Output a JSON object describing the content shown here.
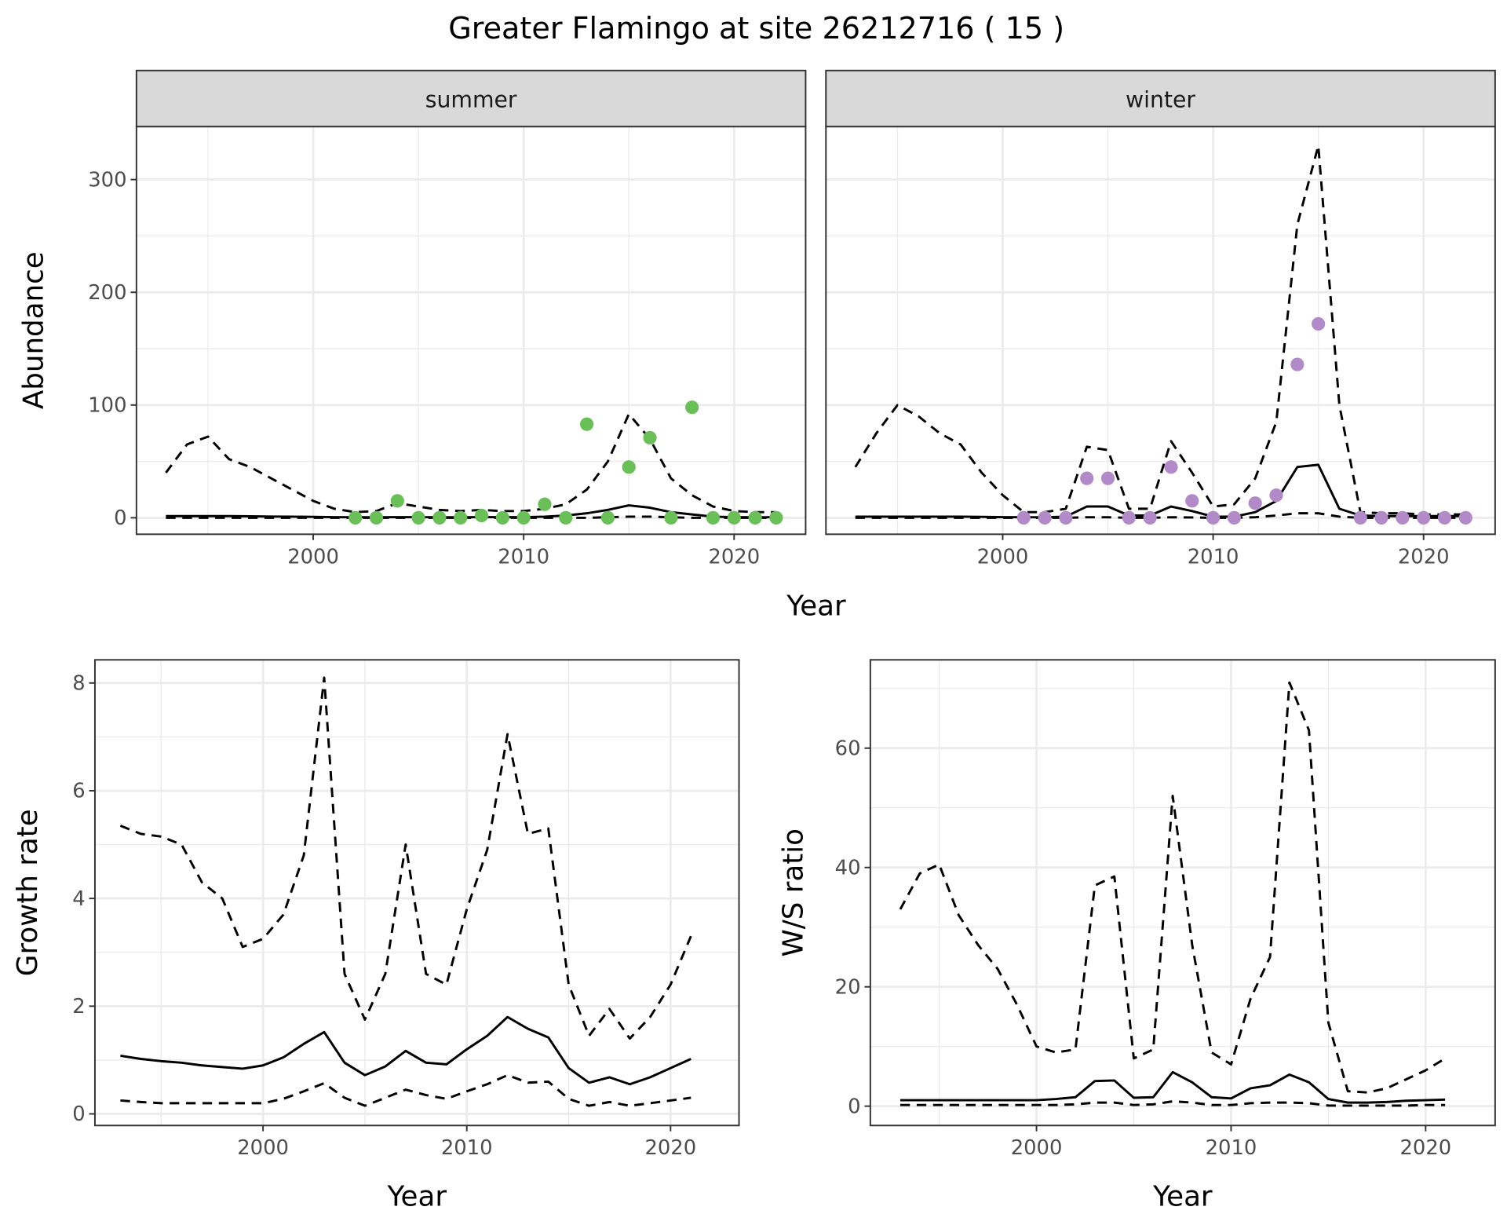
{
  "title": "Greater Flamingo at site 26212716 ( 15 )",
  "colors": {
    "summer_points": "#6abf59",
    "winter_points": "#b38ac8",
    "lines": "#000000",
    "strip_bg": "#d9d9d9",
    "grid": "#ebebeb"
  },
  "chart_data": [
    {
      "type": "line",
      "facet": "summer",
      "xlabel": "Year",
      "ylabel": "Abundance",
      "xlim": [
        1991.6,
        2023.4
      ],
      "ylim": [
        -14.6,
        347
      ],
      "xticks": [
        2000,
        2010,
        2020
      ],
      "yticks": [
        0,
        100,
        200,
        300
      ],
      "grid": true,
      "x": [
        1993,
        1994,
        1995,
        1996,
        1997,
        1998,
        1999,
        2000,
        2001,
        2002,
        2003,
        2004,
        2005,
        2006,
        2007,
        2008,
        2009,
        2010,
        2011,
        2012,
        2013,
        2014,
        2015,
        2016,
        2017,
        2018,
        2019,
        2020,
        2021,
        2022
      ],
      "series": [
        {
          "style": "dashed",
          "values": [
            40,
            65,
            72,
            52,
            45,
            35,
            25,
            15,
            8,
            5,
            6,
            13,
            10,
            7,
            6,
            7,
            6,
            6,
            8,
            12,
            25,
            50,
            92,
            70,
            35,
            20,
            10,
            6,
            5,
            5
          ]
        },
        {
          "style": "solid",
          "values": [
            1.5,
            1.5,
            1.5,
            1.5,
            1.3,
            1.1,
            1,
            0.8,
            0.6,
            0.5,
            0.5,
            0.6,
            0.6,
            0.5,
            0.5,
            0.6,
            0.6,
            0.6,
            1,
            2,
            4,
            7,
            11,
            9,
            5,
            3,
            1,
            0.6,
            0.5,
            0.5
          ]
        },
        {
          "style": "dashed",
          "values": [
            0,
            0,
            0,
            0,
            0,
            0,
            0,
            0,
            0,
            0,
            0,
            0,
            0,
            0,
            0,
            0,
            0,
            0,
            0,
            0,
            0,
            0.5,
            1,
            1,
            0.5,
            0,
            0,
            0,
            0,
            0
          ]
        }
      ],
      "points": {
        "x": [
          2002,
          2003,
          2004,
          2005,
          2006,
          2007,
          2008,
          2009,
          2010,
          2011,
          2012,
          2013,
          2014,
          2015,
          2016,
          2017,
          2018,
          2019,
          2020,
          2021,
          2022
        ],
        "y": [
          0,
          0,
          15,
          0,
          0,
          0,
          2,
          0,
          0,
          12,
          0,
          83,
          0,
          45,
          71,
          0,
          98,
          0,
          0,
          0,
          0
        ]
      }
    },
    {
      "type": "line",
      "facet": "winter",
      "xlabel": "Year",
      "ylabel": "Abundance",
      "xlim": [
        1991.6,
        2023.4
      ],
      "ylim": [
        -14.6,
        347
      ],
      "xticks": [
        2000,
        2010,
        2020
      ],
      "yticks": [
        0,
        100,
        200,
        300
      ],
      "grid": true,
      "x": [
        1993,
        1994,
        1995,
        1996,
        1997,
        1998,
        1999,
        2000,
        2001,
        2002,
        2003,
        2004,
        2005,
        2006,
        2007,
        2008,
        2009,
        2010,
        2011,
        2012,
        2013,
        2014,
        2015,
        2016,
        2017,
        2018,
        2019,
        2020,
        2021,
        2022
      ],
      "series": [
        {
          "style": "dashed",
          "values": [
            45,
            75,
            100,
            90,
            75,
            65,
            40,
            20,
            5,
            5,
            8,
            63,
            60,
            8,
            8,
            68,
            40,
            10,
            12,
            35,
            85,
            260,
            330,
            100,
            5,
            4,
            4,
            3,
            3,
            3
          ]
        },
        {
          "style": "solid",
          "values": [
            1,
            1,
            1,
            1,
            1,
            1,
            0.8,
            0.6,
            0.5,
            0.5,
            1,
            10,
            10,
            2,
            2,
            10,
            6,
            1,
            1,
            5,
            15,
            45,
            47,
            8,
            2,
            1.5,
            1.5,
            1.5,
            1.5,
            1.5
          ]
        },
        {
          "style": "dashed",
          "values": [
            0,
            0,
            0,
            0,
            0,
            0,
            0,
            0,
            0,
            0,
            0,
            0.5,
            0.5,
            0,
            0,
            0.5,
            0.3,
            0,
            0,
            0.5,
            2,
            4,
            4,
            1,
            0,
            0,
            0,
            0,
            0,
            0
          ]
        }
      ],
      "points": {
        "x": [
          2001,
          2002,
          2003,
          2004,
          2005,
          2006,
          2007,
          2008,
          2009,
          2010,
          2011,
          2012,
          2013,
          2014,
          2015,
          2017,
          2018,
          2019,
          2020,
          2021,
          2022
        ],
        "y": [
          0,
          0,
          0,
          35,
          35,
          0,
          0,
          45,
          15,
          0,
          0,
          13,
          20,
          136,
          172,
          0,
          0,
          0,
          0,
          0,
          0
        ]
      }
    },
    {
      "type": "line",
      "xlabel": "Year",
      "ylabel": "Growth rate",
      "xlim": [
        1991.75,
        2023.36
      ],
      "ylim": [
        -0.215,
        8.43
      ],
      "xticks": [
        2000,
        2010,
        2020
      ],
      "yticks": [
        0,
        2,
        4,
        6,
        8
      ],
      "grid": true,
      "x": [
        1993,
        1994,
        1995,
        1996,
        1997,
        1998,
        1999,
        2000,
        2001,
        2002,
        2003,
        2004,
        2005,
        2006,
        2007,
        2008,
        2009,
        2010,
        2011,
        2012,
        2013,
        2014,
        2015,
        2016,
        2017,
        2018,
        2019,
        2020,
        2021
      ],
      "series": [
        {
          "style": "dashed",
          "values": [
            5.35,
            5.2,
            5.15,
            5.0,
            4.3,
            4.0,
            3.1,
            3.25,
            3.7,
            4.8,
            8.1,
            2.6,
            1.75,
            2.6,
            5.0,
            2.6,
            2.4,
            3.8,
            4.9,
            7.05,
            5.2,
            5.3,
            2.4,
            1.45,
            1.95,
            1.4,
            1.8,
            2.4,
            3.3
          ]
        },
        {
          "style": "solid",
          "values": [
            1.08,
            1.02,
            0.98,
            0.95,
            0.9,
            0.87,
            0.84,
            0.9,
            1.05,
            1.3,
            1.52,
            0.95,
            0.72,
            0.88,
            1.17,
            0.95,
            0.92,
            1.2,
            1.45,
            1.8,
            1.58,
            1.42,
            0.85,
            0.58,
            0.68,
            0.55,
            0.68,
            0.85,
            1.02
          ]
        },
        {
          "style": "dashed",
          "values": [
            0.25,
            0.22,
            0.2,
            0.2,
            0.2,
            0.2,
            0.2,
            0.2,
            0.28,
            0.42,
            0.57,
            0.3,
            0.15,
            0.3,
            0.45,
            0.35,
            0.28,
            0.42,
            0.55,
            0.72,
            0.58,
            0.6,
            0.28,
            0.15,
            0.22,
            0.15,
            0.2,
            0.25,
            0.3
          ]
        }
      ]
    },
    {
      "type": "line",
      "xlabel": "Year",
      "ylabel": "W/S ratio",
      "xlim": [
        1991.46,
        2023.57
      ],
      "ylim": [
        -3.24,
        74.8
      ],
      "xticks": [
        2000,
        2010,
        2020
      ],
      "yticks": [
        0,
        20,
        40,
        60
      ],
      "grid": true,
      "x": [
        1993,
        1994,
        1995,
        1996,
        1997,
        1998,
        1999,
        2000,
        2001,
        2002,
        2003,
        2004,
        2005,
        2006,
        2007,
        2008,
        2009,
        2010,
        2011,
        2012,
        2013,
        2014,
        2015,
        2016,
        2017,
        2018,
        2019,
        2020,
        2021
      ],
      "series": [
        {
          "style": "dashed",
          "values": [
            33,
            39,
            40.5,
            32,
            27,
            23,
            17,
            10,
            9,
            9.5,
            37,
            38.5,
            8,
            9.5,
            52,
            27,
            9,
            7,
            18,
            25,
            71,
            63,
            14,
            2.5,
            2.3,
            3,
            4.5,
            6,
            8
          ]
        },
        {
          "style": "solid",
          "values": [
            1,
            1,
            1,
            1,
            1,
            1,
            1,
            1,
            1.2,
            1.5,
            4.2,
            4.3,
            1.4,
            1.5,
            5.7,
            4,
            1.5,
            1.3,
            3,
            3.5,
            5.3,
            4,
            1.2,
            0.6,
            0.6,
            0.7,
            0.9,
            1,
            1.1
          ]
        },
        {
          "style": "dashed",
          "values": [
            0.2,
            0.2,
            0.2,
            0.2,
            0.2,
            0.2,
            0.2,
            0.2,
            0.2,
            0.3,
            0.6,
            0.6,
            0.2,
            0.3,
            0.8,
            0.6,
            0.2,
            0.2,
            0.5,
            0.6,
            0.6,
            0.5,
            0.1,
            0.1,
            0.1,
            0.1,
            0.1,
            0.2,
            0.2
          ]
        }
      ]
    }
  ]
}
